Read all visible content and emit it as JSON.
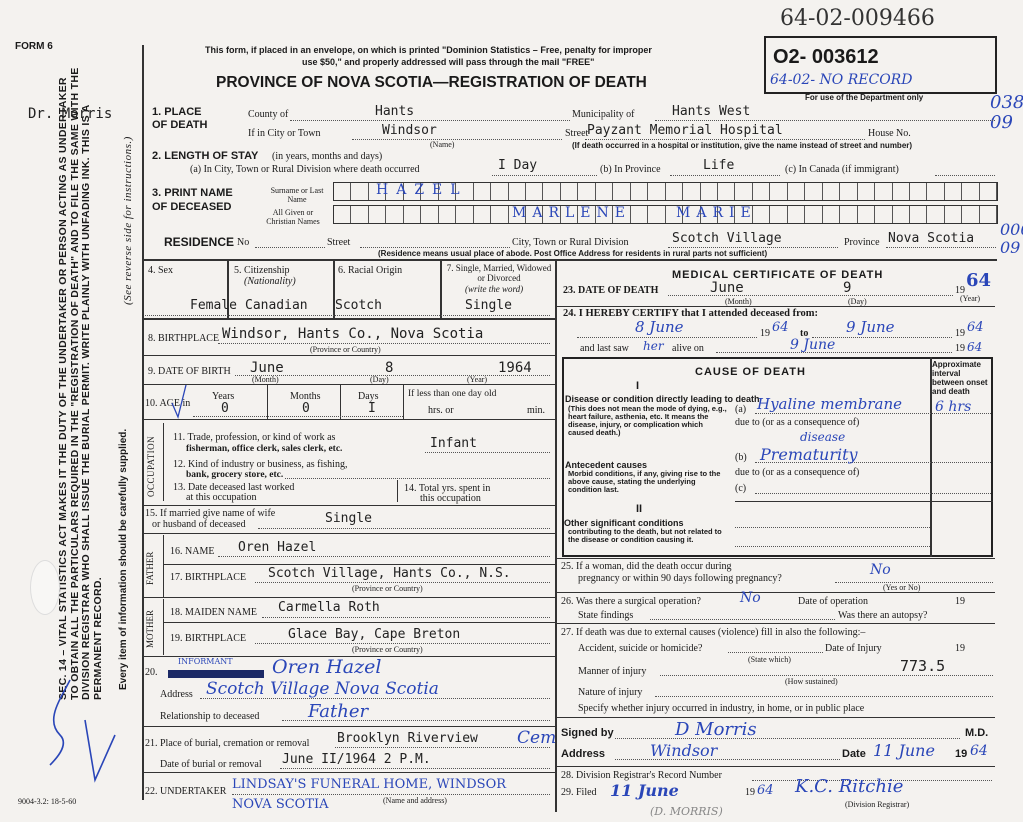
{
  "header": {
    "form": "FORM 6",
    "notice1": "This form, if placed in an envelope, on which is printed \"Dominion Statistics – Free, penalty for improper",
    "notice2": "use $50,\" and properly addressed will pass through the mail \"FREE\"",
    "title": "PROVINCE OF NOVA SCOTIA—REGISTRATION OF DEATH",
    "reg_no": "O2- 003612",
    "hand_no_top": "64-02-009466",
    "hand_no_box": "64-02- NO RECORD",
    "dept_only": "For use of the Department only",
    "doctor_stamp": "Dr. Morris",
    "margin_marks": [
      "038",
      "09",
      "000",
      "09"
    ]
  },
  "sidebar": {
    "statute": "SEC. 14 – VITAL STATISTICS ACT MAKES IT THE DUTY OF THE UNDERTAKER OR PERSON ACTING AS UNDERTAKER TO OBTAIN ALL THE PARTICULARS REQUIRED IN THE \"REGISTRATION OF DEATH\" AND TO FILE THE SAME WITH THE DIVISION REGISTRAR WHO SHALL ISSUE THE BURIAL PERMIT. WRITE PLAINLY WITH UNFADING INK. THIS IS A PERMANENT RECORD.",
    "instruction": "Every item of information should be carefully supplied.",
    "reverse": "(See reverse side for instructions.)",
    "code": "9004-3.2: 18-5-60"
  },
  "place": {
    "label": "1. PLACE OF DEATH",
    "county_label": "County of",
    "county": "Hants",
    "municipality_label": "Municipality of",
    "municipality": "Hants West",
    "city_label": "If in City or Town",
    "city": "Windsor",
    "name_hint": "(Name)",
    "street_label": "Street",
    "street": "Payzant Memorial Hospital",
    "house_label": "House No.",
    "hospital_note": "(If death occurred in a hospital or institution, give the name instead of street and number)"
  },
  "stay": {
    "label": "2. LENGTH OF STAY",
    "sub": "(in years, months and days)",
    "a_label": "(a) In City, Town or Rural Division where death occurred",
    "a": "I Day",
    "b_label": "(b) In Province",
    "b": "Life",
    "c_label": "(c) In Canada (if immigrant)"
  },
  "name": {
    "label": "3. PRINT NAME OF DECEASED",
    "surname_label": "Surname or Last Name",
    "given_label": "All Given or Christian Names",
    "surname": "HAZEL",
    "given1": "MARLENE",
    "given2": "MARIE"
  },
  "residence": {
    "label": "RESIDENCE",
    "no_label": "No",
    "street_label": "Street",
    "city_label": "City, Town or Rural Division",
    "city": "Scotch Village",
    "province_label": "Province",
    "province": "Nova Scotia",
    "note": "(Residence means usual place of abode. Post Office Address for residents in rural parts not sufficient)"
  },
  "personal": {
    "sex_label": "4. Sex",
    "sex": "Female",
    "cit_label": "5. Citizenship",
    "cit_sub": "(Nationality)",
    "cit": "Canadian",
    "race_label": "6. Racial Origin",
    "race": "Scotch",
    "marital_label": "7. Single, Married, Widowed or Divorced",
    "marital_sub": "(write the word)",
    "marital": "Single",
    "birthplace_label": "8. BIRTHPLACE",
    "birthplace": "Windsor, Hants Co., Nova Scotia",
    "prov_country": "(Province or Country)",
    "dob_label": "9. DATE OF BIRTH",
    "dob_month": "June",
    "dob_day": "8",
    "dob_year": "1964",
    "month": "(Month)",
    "day": "(Day)",
    "year": "(Year)",
    "age_label": "10. AGE in",
    "years_label": "Years",
    "years": "0",
    "months_label": "Months",
    "months": "0",
    "days_label": "Days",
    "days": "I",
    "lessday": "If less than one day old",
    "hrs": "hrs. or",
    "min": "min."
  },
  "occupation": {
    "side": "OCCUPATION",
    "q11": "11. Trade, profession, or kind of work as",
    "q11b": "fisherman, office clerk, sales clerk, etc.",
    "a11": "Infant",
    "q12": "12. Kind of industry or business, as fishing,",
    "q12b": "bank, grocery store, etc.",
    "q13": "13. Date deceased last worked",
    "q13b": "at this occupation",
    "q14": "14. Total yrs. spent in",
    "q14b": "this occupation"
  },
  "spouse": {
    "q15": "15. If married give name of wife",
    "q15b": "or husband of deceased",
    "a15": "Single"
  },
  "father": {
    "side": "FATHER",
    "name_label": "16. NAME",
    "name": "Oren Hazel",
    "bp_label": "17. BIRTHPLACE",
    "bp": "Scotch Village, Hants Co., N.S."
  },
  "mother": {
    "side": "MOTHER",
    "name_label": "18. MAIDEN NAME",
    "name": "Carmella Roth",
    "bp_label": "19. BIRTHPLACE",
    "bp": "Glace Bay, Cape Breton"
  },
  "informant": {
    "num": "20.",
    "label": "INFORMANT",
    "name": "Oren Hazel",
    "address_label": "Address",
    "address": "Scotch Village  Nova Scotia",
    "rel_label": "Relationship to deceased",
    "rel": "Father"
  },
  "burial": {
    "label": "21. Place of burial, cremation or removal",
    "place": "Brooklyn Riverview",
    "place_hw": "Cem",
    "date_label": "Date of burial or removal",
    "date": "June II/1964 2 P.M.",
    "undertaker_label": "22. UNDERTAKER",
    "undertaker1": "LINDSAY'S FUNERAL HOME, WINDSOR",
    "undertaker2": "NOVA SCOTIA",
    "name_addr": "(Name and address)"
  },
  "medical": {
    "title": "MEDICAL CERTIFICATE OF DEATH",
    "dod_label": "23. DATE OF DEATH",
    "dod_month": "June",
    "dod_day": "9",
    "dod_year_prefix": "19",
    "dod_year": "64",
    "certify": "24. I HEREBY CERTIFY that I attended deceased from:",
    "from": "8 June",
    "from_year": "64",
    "to_label": "to",
    "to": "9 June",
    "to_year": "64",
    "lastsaw_label": "and last saw",
    "lastsaw_pron": "her",
    "alive_on": "alive on",
    "lastsaw": "9 June",
    "lastsaw_year": "64",
    "cause_title": "CAUSE OF DEATH",
    "part1": "I",
    "interval_label": "Approximate interval between onset and death",
    "direct_label": "Disease or condition directly leading to death",
    "direct_note": "(This does not mean the mode of dying, e.g., heart failure, asthenia, etc. It means the disease, injury, or complication which caused death.)",
    "a": "Hyaline membrane",
    "a2": "disease",
    "a_interval": "6 hrs",
    "due_to": "due to (or as a consequence of)",
    "antecedent_label": "Antecedent causes",
    "antecedent_note": "Morbid conditions, if any, giving rise to the above cause, stating the underlying condition last.",
    "b": "Prematurity",
    "part2": "II",
    "other_label": "Other significant conditions",
    "other_note": "contributing to the death, but not related to the disease or condition causing it."
  },
  "extra": {
    "q25": "25. If a woman, did the death occur during",
    "q25b": "pregnancy or within 90 days following pregnancy?",
    "a25": "No",
    "yesno": "(Yes or No)",
    "q26": "26. Was there a surgical operation?",
    "a26": "No",
    "op_date": "Date of operation",
    "findings": "State findings",
    "autopsy": "Was there an autopsy?",
    "q27": "27. If death was due to external causes (violence) fill in also the following:–",
    "accident": "Accident, suicide or homicide?",
    "injury_date": "Date of Injury",
    "state_which": "(State which)",
    "manner": "Manner of injury",
    "manner_code": "773.5",
    "how": "(How sustained)",
    "nature": "Nature of injury",
    "where": "Specify whether injury occurred in industry, in home, or in public place"
  },
  "signature": {
    "signed_label": "Signed by",
    "signed": "D Morris",
    "md": "M.D.",
    "address_label": "Address",
    "address": "Windsor",
    "date_label": "Date",
    "date": "11 June",
    "year": "64",
    "q28": "28. Division Registrar's Record Number",
    "q29": "29. Filed",
    "filed": "11 June",
    "filed_year": "64",
    "registrar": "K.C. Ritchie",
    "registrar_label": "(Division Registrar)",
    "stamp": "(D. MORRIS)"
  }
}
